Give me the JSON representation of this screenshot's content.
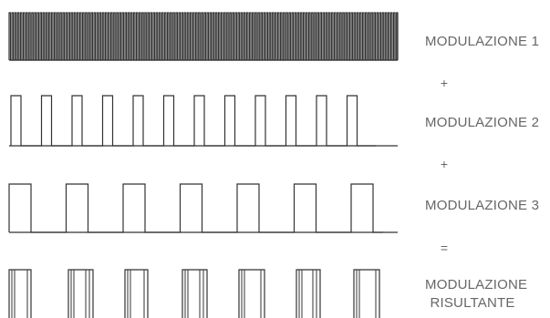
{
  "labels": {
    "mod1": "MODULAZIONE 1",
    "plus1": "+",
    "mod2": "MODULAZIONE 2",
    "plus2": "+",
    "mod3": "MODULAZIONE 3",
    "equals": "=",
    "result": "MODULAZIONE RISULTANTE"
  },
  "stroke_color": "#333333",
  "text_color": "#666666"
}
